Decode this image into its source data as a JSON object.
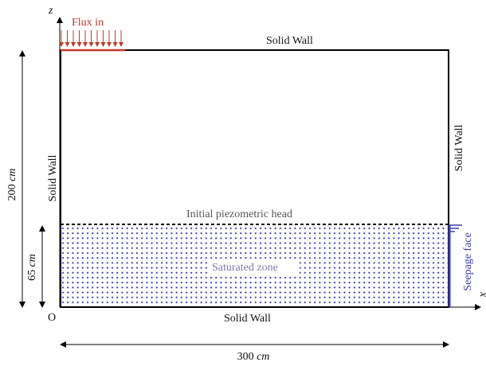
{
  "labels": {
    "flux_in": "Flux in",
    "solid_wall_top": "Solid Wall",
    "solid_wall_bottom": "Solid Wall",
    "solid_wall_left": "Solid Wall",
    "solid_wall_right": "Solid Wall",
    "initial_head": "Initial piezometric head",
    "saturated_zone": "Saturated zone",
    "seepage_face": "Seepage face",
    "origin": "O",
    "z_axis": "z",
    "x_axis": "x",
    "dim_height_value": "200",
    "dim_width_value": "300",
    "dim_water_value": "65",
    "unit": "cm"
  },
  "colors": {
    "flux": "#c0392b",
    "dots": "#2c2cc8",
    "seepage": "#3a3aa8",
    "head_text": "#555555",
    "saturated_text": "#7a7ab0",
    "line": "#000000"
  }
}
